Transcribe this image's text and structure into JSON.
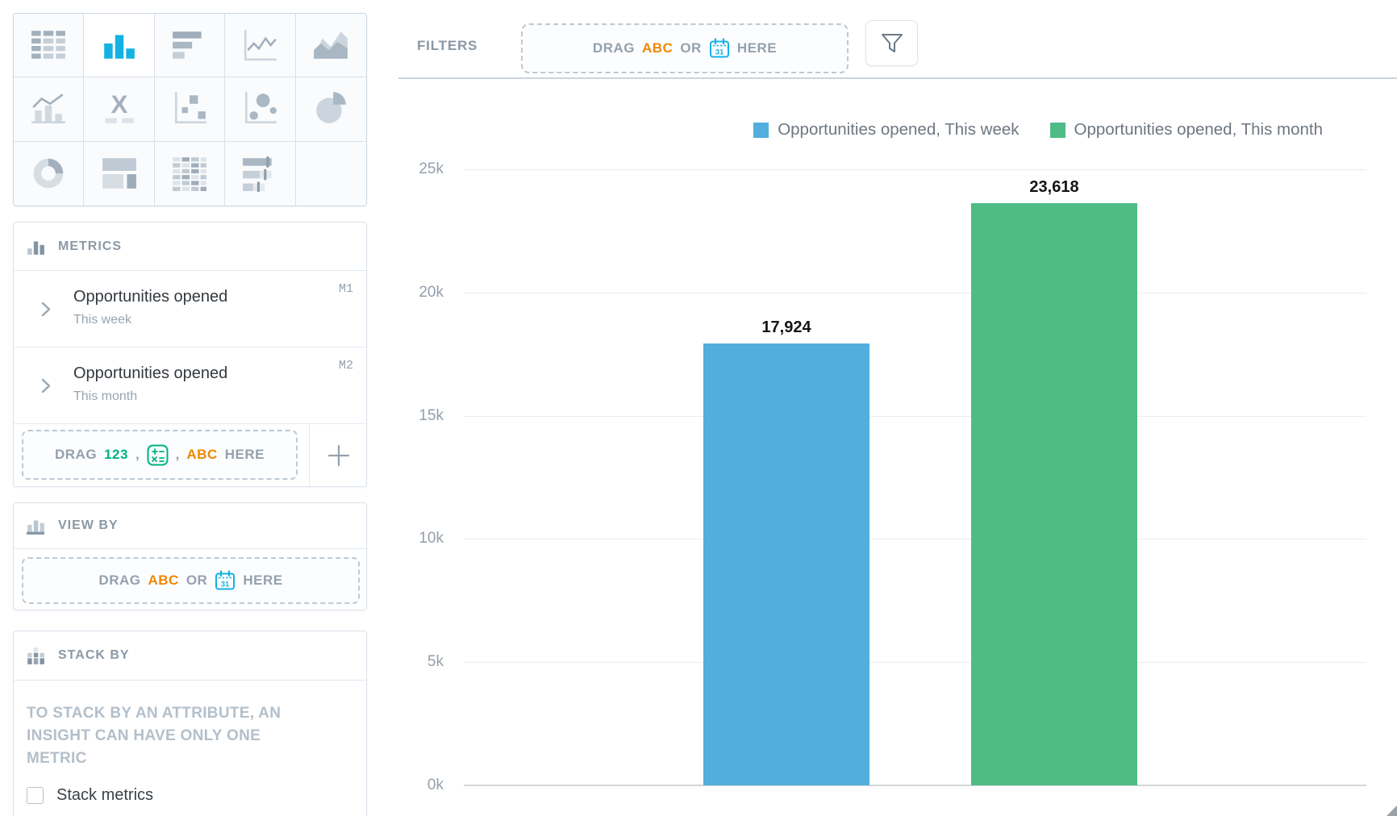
{
  "vis_picker": {
    "types": [
      "table",
      "column-chart",
      "bar-chart",
      "line-chart",
      "area-chart",
      "combo-chart",
      "headline",
      "scatter-plot",
      "bubble-chart",
      "pie-chart",
      "donut-chart",
      "treemap",
      "heatmap",
      "bullet-chart"
    ],
    "selected": "column-chart",
    "headline_glyph": "X"
  },
  "filters_bar": {
    "label": "FILTERS",
    "dropzone": {
      "drag": "DRAG",
      "abc": "ABC",
      "or": "OR",
      "calendar_day": "31",
      "here": "HERE"
    }
  },
  "metrics_panel": {
    "title": "METRICS",
    "items": [
      {
        "title": "Opportunities opened",
        "subtitle": "This week",
        "badge": "M1"
      },
      {
        "title": "Opportunities opened",
        "subtitle": "This month",
        "badge": "M2"
      }
    ],
    "dropzone": {
      "drag": "DRAG",
      "num": "123",
      "comma": ",",
      "abc": "ABC",
      "here": "HERE"
    }
  },
  "view_by_panel": {
    "title": "VIEW BY",
    "dropzone": {
      "drag": "DRAG",
      "abc": "ABC",
      "or": "OR",
      "calendar_day": "31",
      "here": "HERE"
    }
  },
  "stack_by_panel": {
    "title": "STACK BY",
    "notice": "TO STACK BY AN ATTRIBUTE, AN INSIGHT CAN HAVE ONLY ONE METRIC",
    "checkbox_label": "Stack metrics",
    "checkbox_checked": false
  },
  "chart_data": {
    "type": "bar",
    "categories": [
      ""
    ],
    "series": [
      {
        "name": "Opportunities opened, This week",
        "values": [
          17924
        ],
        "data_label": "17,924",
        "color": "#52aedd"
      },
      {
        "name": "Opportunities opened, This month",
        "values": [
          23618
        ],
        "data_label": "23,618",
        "color": "#4fbb85"
      }
    ],
    "xlabel": "",
    "ylabel": "",
    "ylim": [
      0,
      25000
    ],
    "yticks": [
      {
        "value": 25000,
        "label": "25k"
      },
      {
        "value": 20000,
        "label": "20k"
      },
      {
        "value": 15000,
        "label": "15k"
      },
      {
        "value": 10000,
        "label": "10k"
      },
      {
        "value": 5000,
        "label": "5k"
      },
      {
        "value": 0,
        "label": "0k"
      }
    ],
    "grid": true,
    "legend_position": "top-right"
  },
  "colors": {
    "accent_blue": "#14b2e2",
    "series_blue": "#52aedd",
    "series_green": "#4fbb85",
    "measure_green": "#00b184",
    "attribute_orange": "#f08700"
  }
}
